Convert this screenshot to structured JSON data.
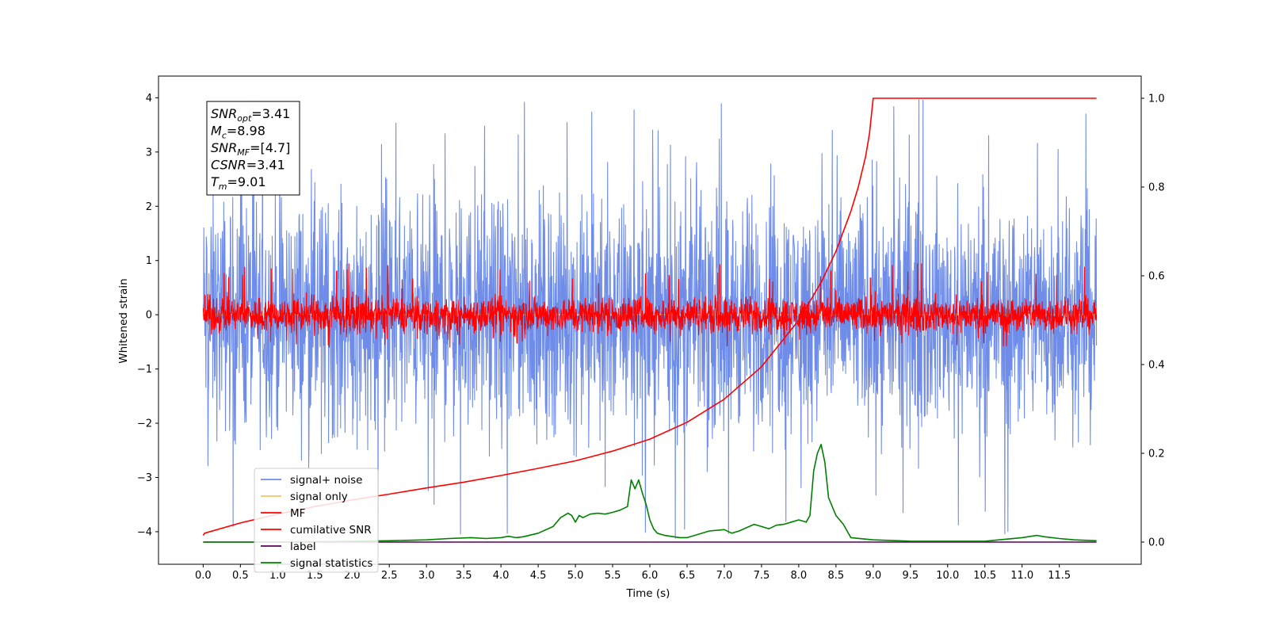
{
  "chart_data": {
    "type": "line",
    "xlabel": "Time (s)",
    "ylabel": "Whitened strain",
    "xlim": [
      -0.6,
      12.6
    ],
    "ylim": [
      -4.6,
      4.4
    ],
    "y2lim": [
      -0.05,
      1.05
    ],
    "xticks": [
      "0.0",
      "0.5",
      "1.0",
      "1.5",
      "2.0",
      "2.5",
      "3.0",
      "3.5",
      "4.0",
      "4.5",
      "5.0",
      "5.5",
      "6.0",
      "6.5",
      "7.0",
      "7.5",
      "8.0",
      "8.5",
      "9.0",
      "9.5",
      "10.0",
      "10.5",
      "11.0",
      "11.5"
    ],
    "yticks": [
      "−4",
      "−3",
      "−2",
      "−1",
      "0",
      "1",
      "2",
      "3",
      "4"
    ],
    "y2ticks": [
      "0.0",
      "0.2",
      "0.4",
      "0.6",
      "0.8",
      "1.0"
    ],
    "info_box": [
      {
        "main": "SNR",
        "sub": "opt",
        "value": "=3.41"
      },
      {
        "main": "M",
        "sub": "c",
        "value": "=8.98"
      },
      {
        "main": "SNR",
        "sub": "MF",
        "value": "=[4.7]"
      },
      {
        "main": "CSNR",
        "sub": "",
        "value": "=3.41"
      },
      {
        "main": "T",
        "sub": "m",
        "value": "=9.01"
      }
    ],
    "legend_position": "lower-left",
    "series": [
      {
        "name": "signal+ noise",
        "color": "#6f8de8",
        "axis": "left",
        "kind": "noise",
        "x_range": [
          0,
          12
        ],
        "mean": 0.0,
        "band": [
          -2.3,
          2.3
        ],
        "peaks_max": 4.0,
        "peaks_min": -4.2
      },
      {
        "name": "signal only",
        "color": "#f5c56a",
        "axis": "left",
        "kind": "flat",
        "x_range": [
          0,
          12
        ],
        "value": 0.0
      },
      {
        "name": "MF",
        "color": "#ff0000",
        "axis": "left",
        "kind": "noise",
        "x_range": [
          0,
          12
        ],
        "mean": 0.0,
        "band": [
          -0.35,
          0.35
        ],
        "peaks_max": 0.95,
        "peaks_min": -0.6
      },
      {
        "name": "cumilative SNR",
        "color": "#ff0000",
        "axis": "right",
        "x": [
          0,
          0.02,
          0.5,
          1,
          1.5,
          2,
          2.5,
          3,
          3.5,
          4,
          4.5,
          5,
          5.5,
          6,
          6.5,
          7,
          7.5,
          8,
          8.3,
          8.5,
          8.7,
          8.8,
          8.9,
          8.95,
          9.0,
          12.0
        ],
        "y": [
          0.015,
          0.02,
          0.043,
          0.063,
          0.08,
          0.095,
          0.108,
          0.122,
          0.135,
          0.15,
          0.166,
          0.183,
          0.205,
          0.232,
          0.27,
          0.322,
          0.395,
          0.5,
          0.585,
          0.655,
          0.745,
          0.8,
          0.87,
          0.92,
          1.0,
          1.0
        ]
      },
      {
        "name": "label",
        "color": "#5c005c",
        "axis": "right",
        "kind": "flat",
        "x_range": [
          0,
          12
        ],
        "value": 0.0
      },
      {
        "name": "signal statistics",
        "color": "#008000",
        "axis": "right",
        "x": [
          0,
          1,
          2,
          2.5,
          3,
          3.3,
          3.6,
          3.8,
          4,
          4.1,
          4.2,
          4.3,
          4.5,
          4.7,
          4.8,
          4.9,
          4.95,
          5.0,
          5.05,
          5.1,
          5.2,
          5.3,
          5.4,
          5.5,
          5.6,
          5.7,
          5.75,
          5.8,
          5.85,
          5.9,
          5.95,
          6.0,
          6.05,
          6.1,
          6.2,
          6.4,
          6.5,
          6.6,
          6.8,
          7.0,
          7.1,
          7.2,
          7.4,
          7.5,
          7.6,
          7.7,
          7.8,
          7.9,
          8.0,
          8.1,
          8.15,
          8.2,
          8.25,
          8.3,
          8.35,
          8.4,
          8.5,
          8.6,
          8.7,
          9.0,
          9.5,
          10,
          10.5,
          11,
          11.2,
          11.3,
          11.5,
          11.7,
          12.0
        ],
        "y": [
          0.0,
          0.0,
          0.002,
          0.003,
          0.005,
          0.008,
          0.01,
          0.008,
          0.01,
          0.013,
          0.01,
          0.012,
          0.02,
          0.035,
          0.055,
          0.065,
          0.06,
          0.045,
          0.06,
          0.055,
          0.063,
          0.065,
          0.063,
          0.067,
          0.072,
          0.08,
          0.14,
          0.12,
          0.14,
          0.11,
          0.085,
          0.05,
          0.03,
          0.02,
          0.015,
          0.01,
          0.01,
          0.015,
          0.025,
          0.028,
          0.02,
          0.025,
          0.04,
          0.035,
          0.03,
          0.038,
          0.04,
          0.045,
          0.05,
          0.045,
          0.06,
          0.16,
          0.2,
          0.22,
          0.18,
          0.1,
          0.06,
          0.04,
          0.01,
          0.005,
          0.002,
          0.002,
          0.002,
          0.01,
          0.015,
          0.012,
          0.008,
          0.005,
          0.003
        ]
      }
    ]
  }
}
